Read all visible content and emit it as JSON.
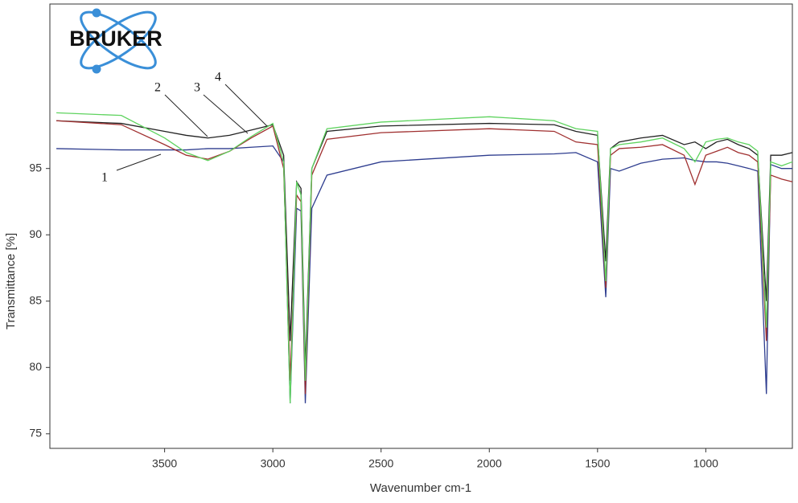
{
  "logo": "BRUKER",
  "chart_data": {
    "type": "line",
    "x_label": "Wavenumber cm-1",
    "y_label": "Transmittance [%]",
    "x": [
      4000,
      3700,
      3500,
      3400,
      3300,
      3200,
      3100,
      3000,
      2950,
      2920,
      2890,
      2870,
      2850,
      2820,
      2750,
      2500,
      2000,
      1700,
      1600,
      1500,
      1462,
      1440,
      1400,
      1300,
      1200,
      1100,
      1050,
      1000,
      950,
      900,
      850,
      800,
      760,
      720,
      700,
      650,
      600
    ],
    "series": [
      {
        "name": "1",
        "color": "#2e3d8f",
        "values": [
          96.5,
          96.4,
          96.4,
          96.4,
          96.5,
          96.5,
          96.6,
          96.7,
          95.5,
          77.3,
          92,
          91.8,
          77.3,
          92,
          94.5,
          95.5,
          96,
          96.1,
          96.2,
          95.5,
          85.3,
          95,
          94.8,
          95.4,
          95.7,
          95.8,
          95.6,
          95.5,
          95.5,
          95.4,
          95.2,
          95,
          94.8,
          78,
          95.3,
          95,
          95
        ]
      },
      {
        "name": "2",
        "color": "#222222",
        "values": [
          98.6,
          98.4,
          97.8,
          97.5,
          97.3,
          97.5,
          97.9,
          98.3,
          96,
          82,
          94,
          93.5,
          80,
          95,
          97.8,
          98.2,
          98.4,
          98.3,
          97.8,
          97.5,
          88,
          96.5,
          97,
          97.3,
          97.5,
          96.8,
          97,
          96.5,
          97,
          97.2,
          96.8,
          96.5,
          96,
          85,
          96,
          96,
          96.2
        ]
      },
      {
        "name": "3",
        "color": "#a03030",
        "values": [
          98.6,
          98.3,
          96.8,
          96,
          95.7,
          96.3,
          97.3,
          98.2,
          95,
          79,
          93,
          92.5,
          78,
          94.5,
          97.2,
          97.7,
          98,
          97.8,
          97,
          96.8,
          86,
          96,
          96.5,
          96.6,
          96.8,
          96,
          93.8,
          96,
          96.3,
          96.6,
          96.2,
          96,
          95.5,
          82,
          94.5,
          94.2,
          94
        ]
      },
      {
        "name": "4",
        "color": "#5fd35f",
        "values": [
          99.2,
          99,
          97.3,
          96.2,
          95.6,
          96.3,
          97.4,
          98.4,
          95.5,
          77.3,
          94,
          93,
          79,
          95,
          98,
          98.5,
          98.9,
          98.6,
          98,
          97.8,
          86.5,
          96.5,
          96.8,
          97,
          97.3,
          96.5,
          95.5,
          97,
          97.2,
          97.3,
          97,
          96.8,
          96.3,
          83,
          95.5,
          95.2,
          95.5
        ]
      }
    ],
    "xlim": [
      4030,
      600
    ],
    "xticks": [
      3500,
      3000,
      2500,
      2000,
      1500,
      1000
    ],
    "ylim": [
      73.9,
      107.4
    ],
    "yticks": [
      75,
      80,
      85,
      90,
      95
    ]
  }
}
